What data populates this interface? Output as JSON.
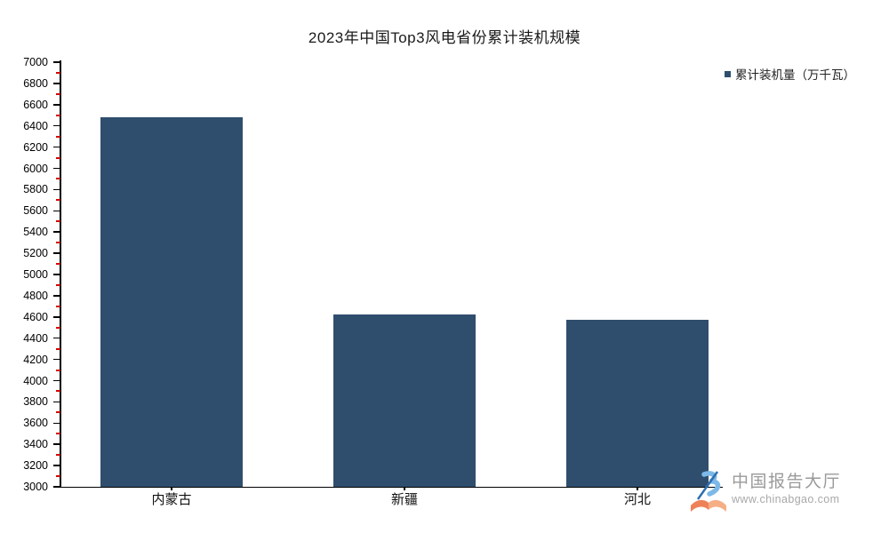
{
  "chart_data": {
    "type": "bar",
    "title": "2023年中国Top3风电省份累计装机规模",
    "categories": [
      "内蒙古",
      "新疆",
      "河北"
    ],
    "series": [
      {
        "name": "累计装机量（万千瓦）",
        "values": [
          6485,
          4625,
          4570
        ]
      }
    ],
    "xlabel": "",
    "ylabel": "",
    "ylim": [
      3000,
      7000
    ],
    "y_major_step": 200,
    "y_minor_step": 100,
    "grid": false,
    "legend_position": "top-right",
    "bar_color": "#2f4e6e",
    "axis_color": "#000000",
    "minor_tick_color": "#d40000"
  },
  "legend": {
    "label": "累计装机量（万千瓦）",
    "marker_color": "#2f4e6e"
  },
  "watermark": {
    "name": "中国报告大厅",
    "url": "www.chinabgao.com"
  }
}
